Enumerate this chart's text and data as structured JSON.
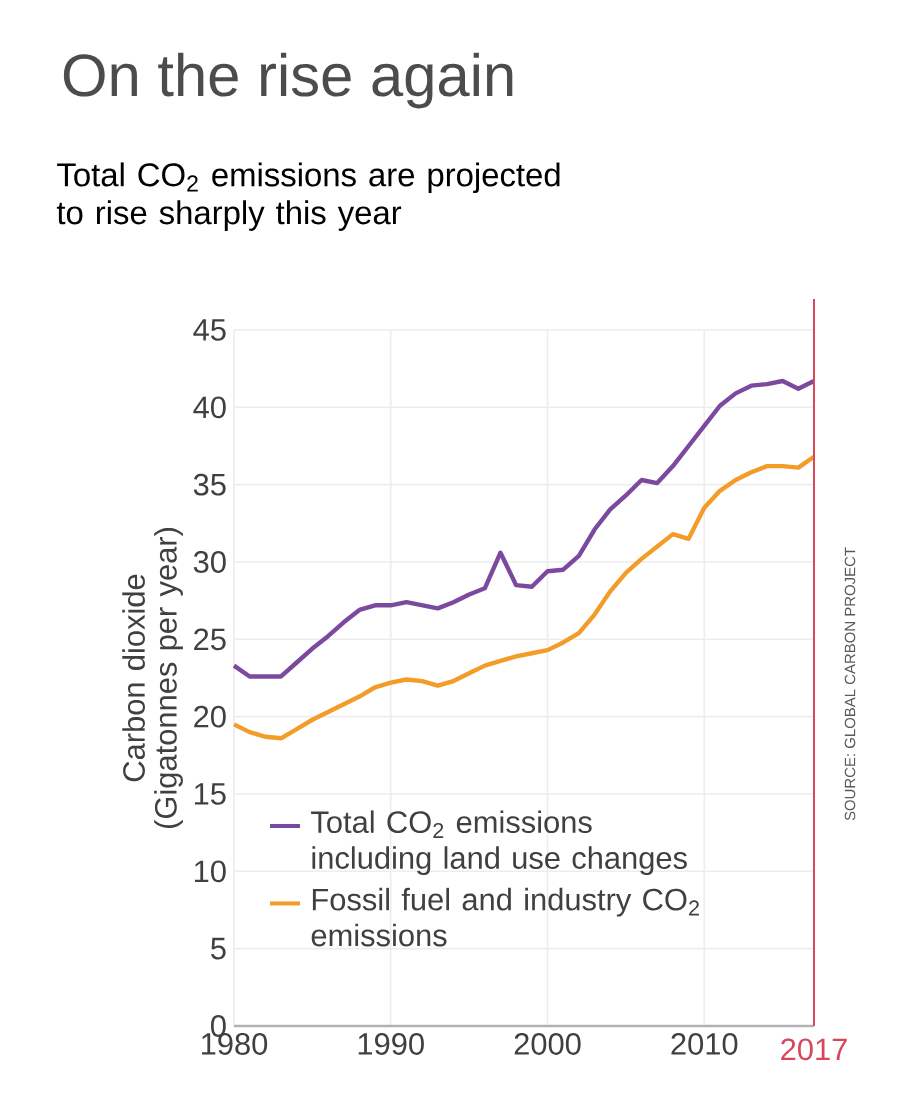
{
  "chart_data": {
    "type": "line",
    "title": "On the rise again",
    "subtitle": "Total CO$_{2}$ emissions are projected to rise sharply this year",
    "ylabel": "Carbon dioxide (Gigatonnes per year)",
    "x": [
      1980,
      1981,
      1982,
      1983,
      1984,
      1985,
      1986,
      1987,
      1988,
      1989,
      1990,
      1991,
      1992,
      1993,
      1994,
      1995,
      1996,
      1997,
      1998,
      1999,
      2000,
      2001,
      2002,
      2003,
      2004,
      2005,
      2006,
      2007,
      2008,
      2009,
      2010,
      2011,
      2012,
      2013,
      2014,
      2015,
      2016,
      2017
    ],
    "series": [
      {
        "name": "Total CO$_{2}$ emissions including land use changes",
        "color": "#7b4a9e",
        "values": [
          23.3,
          22.6,
          22.6,
          22.6,
          23.5,
          24.4,
          25.2,
          26.1,
          26.9,
          27.2,
          27.2,
          27.4,
          27.2,
          27.0,
          27.4,
          27.9,
          28.3,
          30.6,
          28.5,
          28.4,
          29.4,
          29.5,
          30.4,
          32.1,
          33.4,
          34.3,
          35.3,
          35.1,
          36.2,
          37.5,
          38.8,
          40.1,
          40.9,
          41.4,
          41.5,
          41.7,
          41.2,
          41.7
        ]
      },
      {
        "name": "Fossil fuel and industry CO$_{2}$ emissions",
        "color": "#f39c2a",
        "values": [
          19.5,
          19.0,
          18.7,
          18.6,
          19.2,
          19.8,
          20.3,
          20.8,
          21.3,
          21.9,
          22.2,
          22.4,
          22.3,
          22.0,
          22.3,
          22.8,
          23.3,
          23.6,
          23.9,
          24.1,
          24.3,
          24.8,
          25.4,
          26.6,
          28.1,
          29.3,
          30.2,
          31.0,
          31.8,
          31.5,
          33.5,
          34.6,
          35.3,
          35.8,
          36.2,
          36.2,
          36.1,
          36.8
        ]
      }
    ],
    "xlim": [
      1980,
      2017
    ],
    "xticks": [
      1980,
      1990,
      2000,
      2010
    ],
    "ylim": [
      0,
      45
    ],
    "yticks": [
      0,
      5,
      10,
      15,
      20,
      25,
      30,
      35,
      40,
      45
    ],
    "ref_lines": [
      {
        "axis": "x",
        "value": 2017,
        "label": "2017",
        "color": "#d9465a"
      }
    ],
    "grid": true,
    "legend": "bottom",
    "annotations": [
      "SOURCE: GLOBAL CARBON PROJECT"
    ]
  }
}
